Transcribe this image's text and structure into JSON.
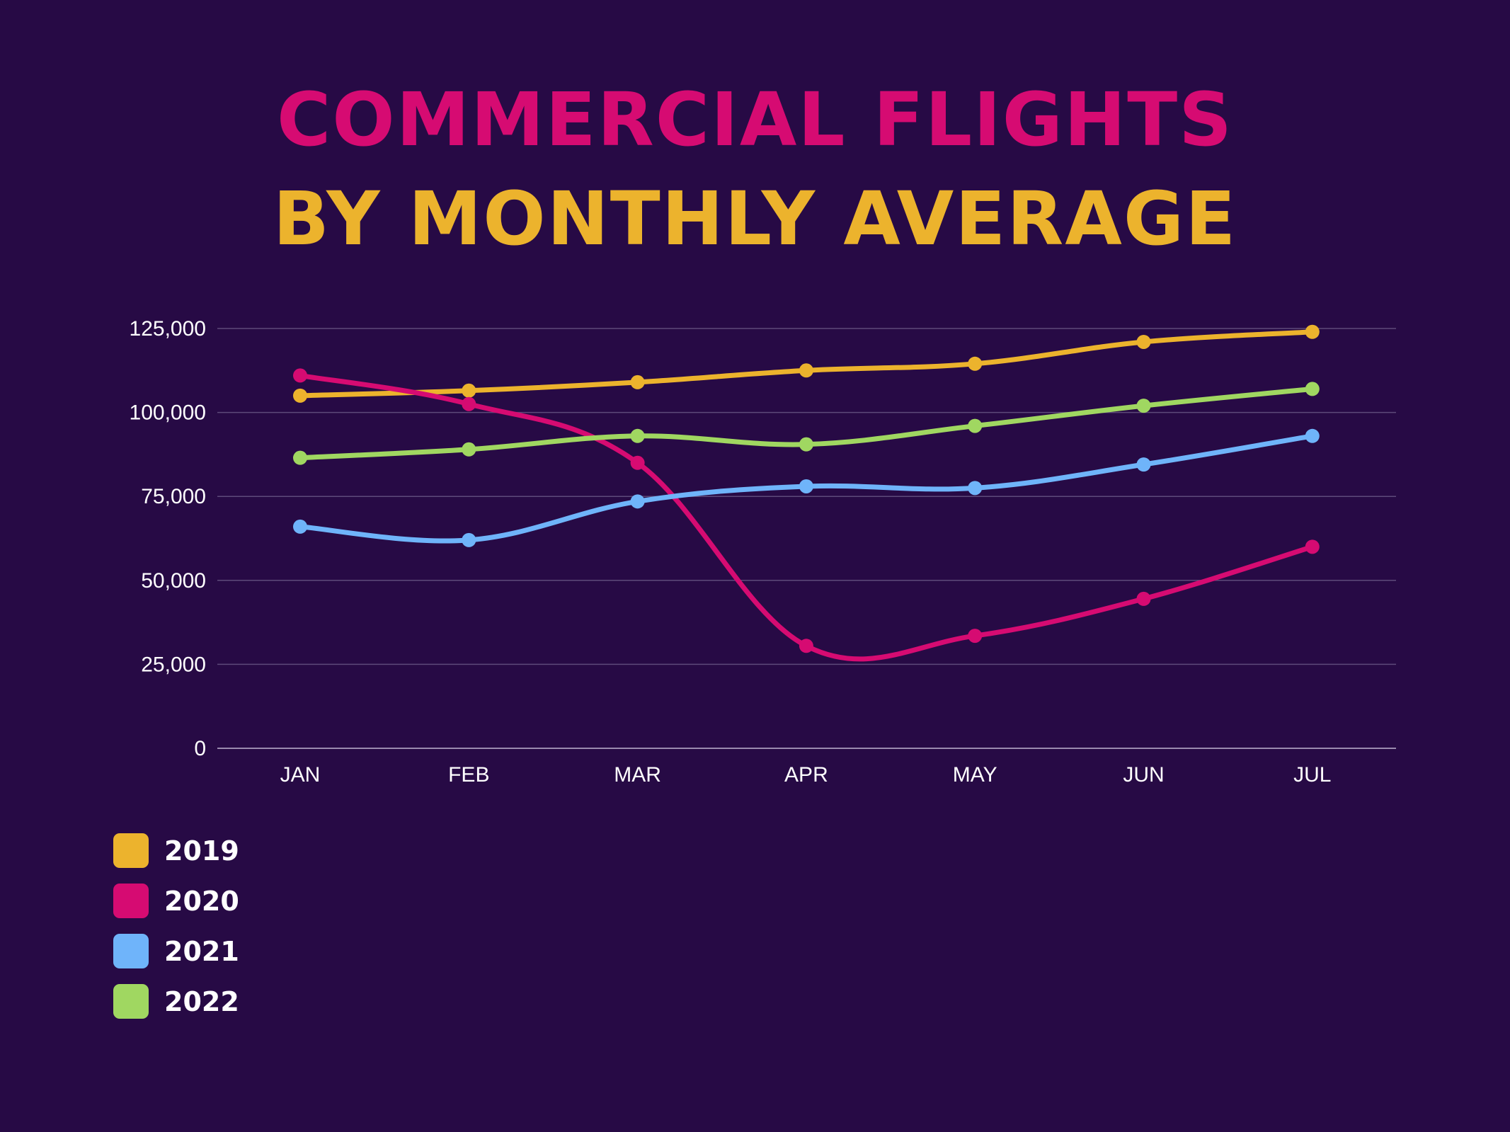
{
  "background": "#270A45",
  "title_line1": "COMMERCIAL FLIGHTS",
  "title_line2": "BY MONTHLY AVERAGE",
  "title_colors": {
    "line1": "#D60B72",
    "line2": "#ECB32D"
  },
  "chart_data": {
    "type": "line",
    "title": "COMMERCIAL FLIGHTS BY MONTHLY AVERAGE",
    "xlabel": "",
    "ylabel": "",
    "categories": [
      "JAN",
      "FEB",
      "MAR",
      "APR",
      "MAY",
      "JUN",
      "JUL"
    ],
    "ylim": [
      0,
      125000
    ],
    "yticks": [
      0,
      25000,
      50000,
      75000,
      100000,
      125000
    ],
    "ytick_labels": [
      "0",
      "25,000",
      "50,000",
      "75,000",
      "100,000",
      "125,000"
    ],
    "grid": true,
    "smooth": true,
    "legend_position": "bottom-left",
    "series": [
      {
        "name": "2019",
        "color": "#ECB32D",
        "values": [
          105000,
          106500,
          109000,
          112500,
          114500,
          121000,
          124000
        ]
      },
      {
        "name": "2020",
        "color": "#D60B72",
        "values": [
          111000,
          102500,
          85000,
          30500,
          33500,
          44500,
          60000
        ]
      },
      {
        "name": "2021",
        "color": "#6FB4FA",
        "values": [
          66000,
          62000,
          73500,
          78000,
          77500,
          84500,
          93000
        ]
      },
      {
        "name": "2022",
        "color": "#A0D761",
        "values": [
          86500,
          89000,
          93000,
          90500,
          96000,
          102000,
          107000
        ]
      }
    ]
  }
}
